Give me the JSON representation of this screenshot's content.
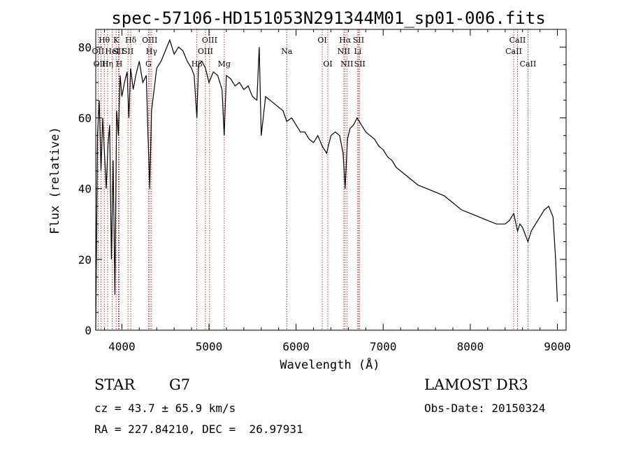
{
  "chart_data": {
    "type": "line",
    "title": "spec-57106-HD151053N291344M01_sp01-006.fits",
    "xlabel": "Wavelength (Å)",
    "ylabel": "Flux (relative)",
    "xlim": [
      3700,
      9100
    ],
    "ylim": [
      0,
      85
    ],
    "xticks": [
      4000,
      5000,
      6000,
      7000,
      8000,
      9000
    ],
    "yticks": [
      0,
      20,
      40,
      60,
      80
    ],
    "series": [
      {
        "x": [
          3700,
          3720,
          3740,
          3760,
          3780,
          3800,
          3820,
          3840,
          3860,
          3880,
          3900,
          3920,
          3940,
          3960,
          3980,
          4000,
          4030,
          4060,
          4080,
          4100,
          4130,
          4160,
          4200,
          4240,
          4280,
          4300,
          4320,
          4340,
          4360,
          4400,
          4450,
          4500,
          4550,
          4600,
          4650,
          4700,
          4750,
          4800,
          4830,
          4861,
          4880,
          4920,
          4960,
          5000,
          5050,
          5100,
          5150,
          5175,
          5200,
          5250,
          5300,
          5350,
          5400,
          5450,
          5500,
          5550,
          5577,
          5600,
          5650,
          5700,
          5750,
          5800,
          5850,
          5893,
          5950,
          6000,
          6050,
          6100,
          6150,
          6200,
          6250,
          6300,
          6350,
          6400,
          6450,
          6500,
          6540,
          6563,
          6590,
          6620,
          6660,
          6700,
          6750,
          6800,
          6850,
          6900,
          6950,
          7000,
          7050,
          7100,
          7150,
          7200,
          7300,
          7400,
          7500,
          7600,
          7700,
          7800,
          7900,
          8000,
          8100,
          8200,
          8300,
          8400,
          8450,
          8498,
          8542,
          8570,
          8600,
          8662,
          8700,
          8750,
          8800,
          8850,
          8900,
          8950,
          8980,
          9000
        ],
        "values": [
          0,
          55,
          65,
          45,
          60,
          50,
          40,
          52,
          58,
          20,
          48,
          10,
          62,
          55,
          72,
          66,
          70,
          73,
          60,
          74,
          68,
          72,
          76,
          70,
          72,
          55,
          40,
          62,
          66,
          74,
          76,
          79,
          82,
          78,
          80,
          79,
          76,
          74,
          72,
          60,
          75,
          76,
          74,
          70,
          73,
          72,
          68,
          55,
          72,
          71,
          69,
          70,
          68,
          69,
          66,
          65,
          80,
          55,
          66,
          65,
          64,
          63,
          62,
          59,
          60,
          58,
          56,
          56,
          54,
          53,
          55,
          52,
          50,
          55,
          56,
          55,
          50,
          40,
          54,
          57,
          58,
          60,
          58,
          56,
          55,
          54,
          52,
          51,
          49,
          48,
          46,
          45,
          43,
          41,
          40,
          39,
          38,
          36,
          34,
          33,
          32,
          31,
          30,
          30,
          31,
          33,
          28,
          30,
          29,
          25,
          28,
          30,
          32,
          34,
          35,
          32,
          20,
          8
        ]
      }
    ],
    "lines": [
      {
        "label": "Hθ",
        "x": 3798,
        "row": 1
      },
      {
        "label": "OII",
        "x": 3727,
        "row": 2
      },
      {
        "label": "OIII",
        "x": 3760,
        "row": 3
      },
      {
        "label": "Hη",
        "x": 3836,
        "row": 3
      },
      {
        "label": "HeI",
        "x": 3889,
        "row": 2
      },
      {
        "label": "K",
        "x": 3934,
        "row": 1
      },
      {
        "label": "SII",
        "x": 3960,
        "row": 2
      },
      {
        "label": "H",
        "x": 3969,
        "row": 3
      },
      {
        "label": "Hδ",
        "x": 4102,
        "row": 1
      },
      {
        "label": "SII",
        "x": 4070,
        "row": 2
      },
      {
        "label": "OIII",
        "x": 4320,
        "row": 1
      },
      {
        "label": "Hγ",
        "x": 4341,
        "row": 2
      },
      {
        "label": "G",
        "x": 4305,
        "row": 3
      },
      {
        "label": "Hβ",
        "x": 4861,
        "row": 3
      },
      {
        "label": "OIII",
        "x": 5007,
        "row": 1
      },
      {
        "label": "OIII",
        "x": 4959,
        "row": 2
      },
      {
        "label": "Mg",
        "x": 5175,
        "row": 3
      },
      {
        "label": "Na",
        "x": 5893,
        "row": 2
      },
      {
        "label": "OI",
        "x": 6300,
        "row": 1
      },
      {
        "label": "OI",
        "x": 6364,
        "row": 3
      },
      {
        "label": "Hα",
        "x": 6563,
        "row": 1
      },
      {
        "label": "NII",
        "x": 6548,
        "row": 2
      },
      {
        "label": "NII",
        "x": 6583,
        "row": 3
      },
      {
        "label": "SII",
        "x": 6717,
        "row": 1
      },
      {
        "label": "Li",
        "x": 6708,
        "row": 2
      },
      {
        "label": "SII",
        "x": 6731,
        "row": 3
      },
      {
        "label": "CaII",
        "x": 8542,
        "row": 1
      },
      {
        "label": "CaII",
        "x": 8498,
        "row": 2
      },
      {
        "label": "CaII",
        "x": 8662,
        "row": 3
      }
    ]
  },
  "info": {
    "object_type": "STAR",
    "subclass": "G7",
    "survey": "LAMOST DR3",
    "cz": "cz = 43.7 ± 65.9 km/s",
    "obs_date": "Obs-Date: 20150324",
    "coords": "RA = 227.84210, DEC =  26.97931"
  }
}
